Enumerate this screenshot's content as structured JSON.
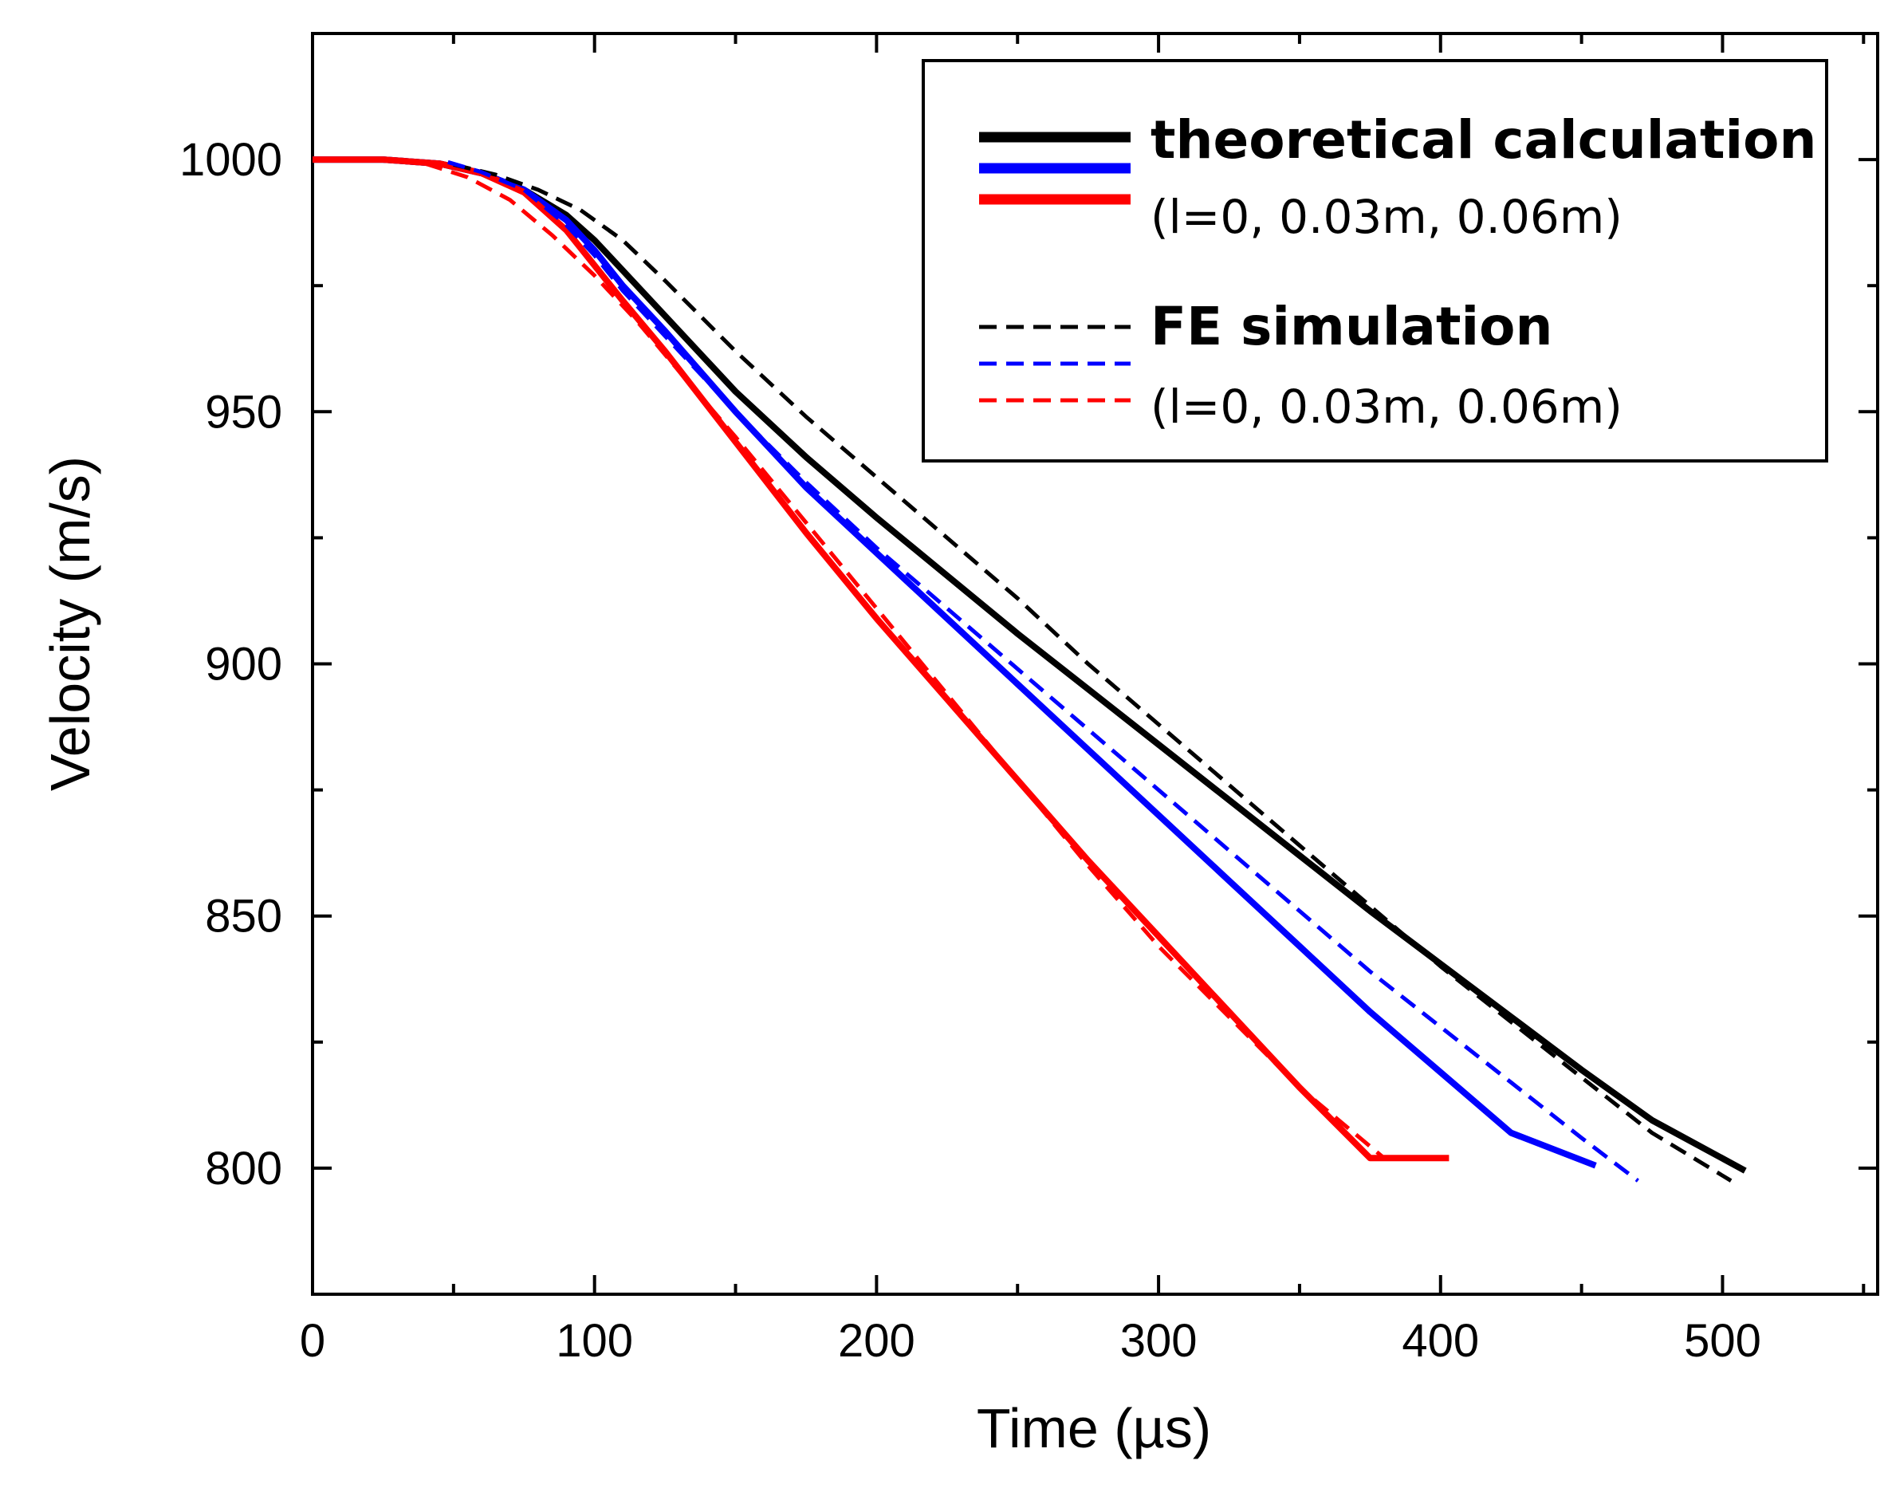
{
  "chart_data": {
    "type": "line",
    "xlabel": "Time (µs)",
    "ylabel": "Velocity (m/s)",
    "xlim": [
      0,
      555
    ],
    "ylim": [
      775,
      1025
    ],
    "xticks": [
      0,
      100,
      200,
      300,
      400,
      500
    ],
    "yticks": [
      800,
      850,
      900,
      950,
      1000
    ],
    "x_tick_labels": [
      "0",
      "100",
      "200",
      "300",
      "400",
      "500"
    ],
    "y_tick_labels": [
      "800",
      "850",
      "900",
      "950",
      "1000"
    ],
    "grid": false,
    "legend_position": "top-right",
    "legend": {
      "theory_title": "theoretical calculation",
      "theory_sub": "(l=0, 0.03m, 0.06m)",
      "fe_title": "FE simulation",
      "fe_sub": "(l=0, 0.03m, 0.06m)"
    },
    "series": [
      {
        "group": "theoretical calculation",
        "style": "solid",
        "color": "#000000",
        "points": [
          [
            0,
            1000
          ],
          [
            25,
            1000
          ],
          [
            45,
            999.2
          ],
          [
            60,
            997.3
          ],
          [
            75,
            994
          ],
          [
            90,
            989
          ],
          [
            100,
            984
          ],
          [
            110,
            978
          ],
          [
            125,
            969
          ],
          [
            150,
            954
          ],
          [
            175,
            941
          ],
          [
            200,
            929
          ],
          [
            225,
            917.5
          ],
          [
            250,
            906
          ],
          [
            275,
            895
          ],
          [
            300,
            884
          ],
          [
            325,
            873
          ],
          [
            350,
            862
          ],
          [
            375,
            851
          ],
          [
            400,
            840.5
          ],
          [
            425,
            830
          ],
          [
            450,
            819.5
          ],
          [
            475,
            809.5
          ],
          [
            508,
            799.5
          ]
        ]
      },
      {
        "group": "theoretical calculation",
        "style": "solid",
        "color": "#0000ff",
        "points": [
          [
            0,
            1000
          ],
          [
            25,
            1000
          ],
          [
            45,
            999.2
          ],
          [
            60,
            997.3
          ],
          [
            75,
            994
          ],
          [
            90,
            988
          ],
          [
            100,
            982
          ],
          [
            110,
            975
          ],
          [
            125,
            966
          ],
          [
            150,
            950
          ],
          [
            175,
            935
          ],
          [
            200,
            922
          ],
          [
            225,
            909
          ],
          [
            250,
            896
          ],
          [
            275,
            883
          ],
          [
            300,
            870
          ],
          [
            325,
            857
          ],
          [
            350,
            844
          ],
          [
            375,
            831
          ],
          [
            400,
            819
          ],
          [
            425,
            807
          ],
          [
            455,
            800.5
          ]
        ]
      },
      {
        "group": "theoretical calculation",
        "style": "solid",
        "color": "#ff0000",
        "points": [
          [
            0,
            1000
          ],
          [
            25,
            1000
          ],
          [
            45,
            999.2
          ],
          [
            60,
            997.3
          ],
          [
            75,
            993.5
          ],
          [
            90,
            986
          ],
          [
            100,
            979
          ],
          [
            110,
            972
          ],
          [
            125,
            962
          ],
          [
            150,
            944
          ],
          [
            175,
            926
          ],
          [
            200,
            909
          ],
          [
            225,
            893
          ],
          [
            250,
            877
          ],
          [
            275,
            861
          ],
          [
            300,
            846
          ],
          [
            325,
            831
          ],
          [
            350,
            816
          ],
          [
            375,
            802
          ],
          [
            403,
            802
          ]
        ]
      },
      {
        "group": "FE simulation",
        "style": "dashed",
        "color": "#000000",
        "points": [
          [
            50,
            999
          ],
          [
            65,
            997
          ],
          [
            80,
            994
          ],
          [
            95,
            990
          ],
          [
            110,
            984
          ],
          [
            125,
            976
          ],
          [
            150,
            962
          ],
          [
            175,
            949
          ],
          [
            200,
            937
          ],
          [
            225,
            925
          ],
          [
            250,
            913
          ],
          [
            275,
            900
          ],
          [
            300,
            888
          ],
          [
            325,
            876
          ],
          [
            350,
            864
          ],
          [
            375,
            852
          ],
          [
            400,
            840
          ],
          [
            425,
            829
          ],
          [
            450,
            818
          ],
          [
            475,
            807
          ],
          [
            503,
            797.5
          ]
        ]
      },
      {
        "group": "FE simulation",
        "style": "dashed",
        "color": "#0000ff",
        "points": [
          [
            48,
            999.5
          ],
          [
            60,
            997.5
          ],
          [
            75,
            994
          ],
          [
            90,
            987
          ],
          [
            100,
            981
          ],
          [
            110,
            974
          ],
          [
            125,
            965
          ],
          [
            150,
            950
          ],
          [
            175,
            936
          ],
          [
            200,
            923
          ],
          [
            225,
            911
          ],
          [
            250,
            899
          ],
          [
            275,
            887
          ],
          [
            300,
            875
          ],
          [
            325,
            863
          ],
          [
            350,
            851
          ],
          [
            375,
            839
          ],
          [
            400,
            828
          ],
          [
            425,
            817
          ],
          [
            450,
            806
          ],
          [
            470,
            797.5
          ]
        ]
      },
      {
        "group": "FE simulation",
        "style": "dashed",
        "color": "#ff0000",
        "points": [
          [
            40,
            999.2
          ],
          [
            55,
            996.5
          ],
          [
            70,
            992
          ],
          [
            85,
            985
          ],
          [
            100,
            977
          ],
          [
            115,
            968
          ],
          [
            130,
            958
          ],
          [
            150,
            945
          ],
          [
            175,
            928
          ],
          [
            200,
            911
          ],
          [
            225,
            894
          ],
          [
            250,
            877
          ],
          [
            275,
            860
          ],
          [
            300,
            844
          ],
          [
            325,
            830
          ],
          [
            350,
            816
          ],
          [
            380,
            802
          ]
        ]
      }
    ]
  }
}
